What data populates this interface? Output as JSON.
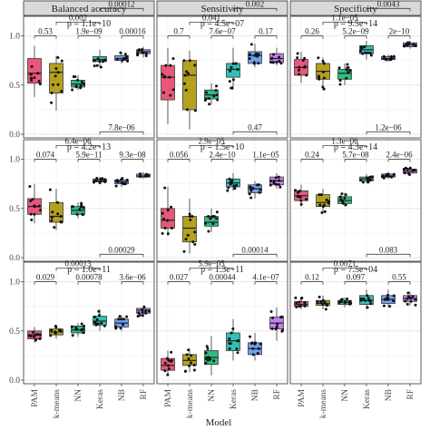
{
  "chart_data": {
    "type": "boxplot",
    "x_title": "Model",
    "categories": [
      "PAM",
      "k-means",
      "NN",
      "Keras",
      "NB",
      "RF"
    ],
    "colors": [
      "#e8577a",
      "#b5a11d",
      "#2dbd7e",
      "#30c2b5",
      "#6d9ff0",
      "#c57ef0"
    ],
    "column_titles": [
      "Balanced accuracy",
      "Sensitivity",
      "Specificity"
    ],
    "ylim": [
      0,
      1.15
    ],
    "y_ticks": [
      0.0,
      0.5,
      1.0
    ],
    "y_tick_labels": [
      "0.0",
      "0.5",
      "1.0"
    ],
    "grid": true,
    "panels": [
      {
        "row": 0,
        "col": 0,
        "p_overall": "p = 1.1e−10",
        "comparisons": [
          {
            "from": 0,
            "to": 1,
            "label": "0.53",
            "level": 0
          },
          {
            "from": 1,
            "to": 3,
            "label": "0.002",
            "level": 1
          },
          {
            "from": 2,
            "to": 3,
            "label": "1.9e−09",
            "level": 0
          },
          {
            "from": 3,
            "to": 5,
            "label": "0.00012",
            "level": 2
          },
          {
            "from": 4,
            "to": 5,
            "label": "0.00016",
            "level": 0
          }
        ],
        "boxes": [
          {
            "min": 0.38,
            "q1": 0.52,
            "median": 0.62,
            "q3": 0.77,
            "max": 0.9
          },
          {
            "min": 0.24,
            "q1": 0.42,
            "median": 0.63,
            "q3": 0.72,
            "max": 0.8
          },
          {
            "min": 0.45,
            "q1": 0.48,
            "median": 0.51,
            "q3": 0.55,
            "max": 0.6
          },
          {
            "min": 0.68,
            "q1": 0.74,
            "median": 0.76,
            "q3": 0.79,
            "max": 0.86
          },
          {
            "min": 0.72,
            "q1": 0.75,
            "median": 0.77,
            "q3": 0.8,
            "max": 0.84
          },
          {
            "min": 0.78,
            "q1": 0.82,
            "median": 0.84,
            "q3": 0.86,
            "max": 0.89
          }
        ]
      },
      {
        "row": 0,
        "col": 1,
        "p_overall": "p = 4.5e−07",
        "comparisons": [
          {
            "from": 0,
            "to": 1,
            "label": "0.7",
            "level": 0
          },
          {
            "from": 1,
            "to": 3,
            "label": "0.041",
            "level": 1
          },
          {
            "from": 2,
            "to": 3,
            "label": "7.6e−07",
            "level": 0
          },
          {
            "from": 3,
            "to": 5,
            "label": "0.002",
            "level": 2
          },
          {
            "from": 4,
            "to": 5,
            "label": "0.17",
            "level": 0
          }
        ],
        "boxes": [
          {
            "min": 0.1,
            "q1": 0.35,
            "median": 0.58,
            "q3": 0.7,
            "max": 0.88
          },
          {
            "min": 0.05,
            "q1": 0.25,
            "median": 0.6,
            "q3": 0.75,
            "max": 0.85
          },
          {
            "min": 0.3,
            "q1": 0.36,
            "median": 0.4,
            "q3": 0.45,
            "max": 0.52
          },
          {
            "min": 0.45,
            "q1": 0.58,
            "median": 0.66,
            "q3": 0.72,
            "max": 0.88
          },
          {
            "min": 0.68,
            "q1": 0.72,
            "median": 0.8,
            "q3": 0.84,
            "max": 0.92
          },
          {
            "min": 0.7,
            "q1": 0.73,
            "median": 0.77,
            "q3": 0.82,
            "max": 0.88
          }
        ]
      },
      {
        "row": 0,
        "col": 2,
        "p_overall": "p = 9.5e−14",
        "comparisons": [
          {
            "from": 0,
            "to": 1,
            "label": "0.26",
            "level": 0
          },
          {
            "from": 1,
            "to": 3,
            "label": "1.1e−05",
            "level": 1
          },
          {
            "from": 2,
            "to": 3,
            "label": "5.2e−09",
            "level": 0
          },
          {
            "from": 3,
            "to": 5,
            "label": "0.0043",
            "level": 2
          },
          {
            "from": 4,
            "to": 5,
            "label": "2e−10",
            "level": 0
          }
        ],
        "boxes": [
          {
            "min": 0.52,
            "q1": 0.6,
            "median": 0.68,
            "q3": 0.76,
            "max": 0.84
          },
          {
            "min": 0.45,
            "q1": 0.56,
            "median": 0.64,
            "q3": 0.72,
            "max": 0.78
          },
          {
            "min": 0.5,
            "q1": 0.56,
            "median": 0.62,
            "q3": 0.66,
            "max": 0.72
          },
          {
            "min": 0.76,
            "q1": 0.82,
            "median": 0.86,
            "q3": 0.9,
            "max": 0.95
          },
          {
            "min": 0.74,
            "q1": 0.76,
            "median": 0.77,
            "q3": 0.79,
            "max": 0.81
          },
          {
            "min": 0.87,
            "q1": 0.89,
            "median": 0.91,
            "q3": 0.93,
            "max": 0.95
          }
        ]
      },
      {
        "row": 1,
        "col": 0,
        "p_overall": "p = 4.2e−13",
        "comparisons": [
          {
            "from": 0,
            "to": 1,
            "label": "0.074",
            "level": 0
          },
          {
            "from": 1,
            "to": 3,
            "label": "6.4e−06",
            "level": 1
          },
          {
            "from": 2,
            "to": 3,
            "label": "5.9e−11",
            "level": 0
          },
          {
            "from": 3,
            "to": 5,
            "label": "7.8e−06",
            "level": 2
          },
          {
            "from": 4,
            "to": 5,
            "label": "9.3e−08",
            "level": 0
          }
        ],
        "boxes": [
          {
            "min": 0.35,
            "q1": 0.44,
            "median": 0.52,
            "q3": 0.6,
            "max": 0.75
          },
          {
            "min": 0.28,
            "q1": 0.36,
            "median": 0.42,
            "q3": 0.56,
            "max": 0.7
          },
          {
            "min": 0.4,
            "q1": 0.44,
            "median": 0.48,
            "q3": 0.52,
            "max": 0.56
          },
          {
            "min": 0.76,
            "q1": 0.77,
            "median": 0.78,
            "q3": 0.8,
            "max": 0.82
          },
          {
            "min": 0.72,
            "q1": 0.75,
            "median": 0.77,
            "q3": 0.79,
            "max": 0.82
          },
          {
            "min": 0.8,
            "q1": 0.82,
            "median": 0.83,
            "q3": 0.85,
            "max": 0.87
          }
        ]
      },
      {
        "row": 1,
        "col": 1,
        "p_overall": "p = 1.5e−10",
        "comparisons": [
          {
            "from": 0,
            "to": 1,
            "label": "0.056",
            "level": 0
          },
          {
            "from": 1,
            "to": 3,
            "label": "2.9e−05",
            "level": 1
          },
          {
            "from": 2,
            "to": 3,
            "label": "2.4e−10",
            "level": 0
          },
          {
            "from": 3,
            "to": 5,
            "label": "0.47",
            "level": 2
          },
          {
            "from": 4,
            "to": 5,
            "label": "1.1e−05",
            "level": 0
          }
        ],
        "boxes": [
          {
            "min": 0.22,
            "q1": 0.3,
            "median": 0.38,
            "q3": 0.5,
            "max": 0.72
          },
          {
            "min": 0.04,
            "q1": 0.16,
            "median": 0.3,
            "q3": 0.42,
            "max": 0.6
          },
          {
            "min": 0.26,
            "q1": 0.32,
            "median": 0.36,
            "q3": 0.42,
            "max": 0.5
          },
          {
            "min": 0.68,
            "q1": 0.72,
            "median": 0.76,
            "q3": 0.8,
            "max": 0.86
          },
          {
            "min": 0.6,
            "q1": 0.66,
            "median": 0.7,
            "q3": 0.74,
            "max": 0.78
          },
          {
            "min": 0.7,
            "q1": 0.74,
            "median": 0.78,
            "q3": 0.82,
            "max": 0.86
          }
        ]
      },
      {
        "row": 1,
        "col": 2,
        "p_overall": "p = 4.3e−14",
        "comparisons": [
          {
            "from": 0,
            "to": 1,
            "label": "0.24",
            "level": 0
          },
          {
            "from": 1,
            "to": 3,
            "label": "1.3e−06",
            "level": 1
          },
          {
            "from": 2,
            "to": 3,
            "label": "5.7e−08",
            "level": 0
          },
          {
            "from": 3,
            "to": 5,
            "label": "1.2e−06",
            "level": 2
          },
          {
            "from": 4,
            "to": 5,
            "label": "2.4e−06",
            "level": 0
          }
        ],
        "boxes": [
          {
            "min": 0.52,
            "q1": 0.58,
            "median": 0.63,
            "q3": 0.68,
            "max": 0.74
          },
          {
            "min": 0.45,
            "q1": 0.52,
            "median": 0.56,
            "q3": 0.64,
            "max": 0.7
          },
          {
            "min": 0.52,
            "q1": 0.55,
            "median": 0.58,
            "q3": 0.62,
            "max": 0.66
          },
          {
            "min": 0.76,
            "q1": 0.78,
            "median": 0.8,
            "q3": 0.82,
            "max": 0.85
          },
          {
            "min": 0.8,
            "q1": 0.82,
            "median": 0.83,
            "q3": 0.85,
            "max": 0.87
          },
          {
            "min": 0.84,
            "q1": 0.86,
            "median": 0.88,
            "q3": 0.9,
            "max": 0.92
          }
        ]
      },
      {
        "row": 2,
        "col": 0,
        "p_overall": "p = 1.0e−11",
        "comparisons": [
          {
            "from": 0,
            "to": 1,
            "label": "0.029",
            "level": 0
          },
          {
            "from": 1,
            "to": 3,
            "label": "0.00013",
            "level": 1
          },
          {
            "from": 2,
            "to": 3,
            "label": "0.00078",
            "level": 0
          },
          {
            "from": 3,
            "to": 5,
            "label": "0.00029",
            "level": 2
          },
          {
            "from": 4,
            "to": 5,
            "label": "3.6e−06",
            "level": 0
          }
        ],
        "boxes": [
          {
            "min": 0.38,
            "q1": 0.42,
            "median": 0.46,
            "q3": 0.5,
            "max": 0.54
          },
          {
            "min": 0.42,
            "q1": 0.46,
            "median": 0.49,
            "q3": 0.52,
            "max": 0.56
          },
          {
            "min": 0.44,
            "q1": 0.48,
            "median": 0.51,
            "q3": 0.55,
            "max": 0.58
          },
          {
            "min": 0.5,
            "q1": 0.56,
            "median": 0.6,
            "q3": 0.65,
            "max": 0.72
          },
          {
            "min": 0.5,
            "q1": 0.54,
            "median": 0.58,
            "q3": 0.62,
            "max": 0.66
          },
          {
            "min": 0.64,
            "q1": 0.68,
            "median": 0.71,
            "q3": 0.73,
            "max": 0.76
          }
        ]
      },
      {
        "row": 2,
        "col": 1,
        "p_overall": "p = 1.3e−11",
        "comparisons": [
          {
            "from": 0,
            "to": 1,
            "label": "0.027",
            "level": 0
          },
          {
            "from": 1,
            "to": 3,
            "label": "5.9e−05",
            "level": 1
          },
          {
            "from": 2,
            "to": 3,
            "label": "0.00044",
            "level": 0
          },
          {
            "from": 3,
            "to": 5,
            "label": "0.00014",
            "level": 2
          },
          {
            "from": 4,
            "to": 5,
            "label": "4.1e−07",
            "level": 0
          }
        ],
        "boxes": [
          {
            "min": 0.04,
            "q1": 0.1,
            "median": 0.15,
            "q3": 0.22,
            "max": 0.3
          },
          {
            "min": 0.08,
            "q1": 0.15,
            "median": 0.2,
            "q3": 0.26,
            "max": 0.32
          },
          {
            "min": 0.05,
            "q1": 0.16,
            "median": 0.23,
            "q3": 0.3,
            "max": 0.45
          },
          {
            "min": 0.2,
            "q1": 0.3,
            "median": 0.4,
            "q3": 0.48,
            "max": 0.62
          },
          {
            "min": 0.2,
            "q1": 0.26,
            "median": 0.32,
            "q3": 0.38,
            "max": 0.48
          },
          {
            "min": 0.4,
            "q1": 0.52,
            "median": 0.58,
            "q3": 0.64,
            "max": 0.74
          }
        ]
      },
      {
        "row": 2,
        "col": 2,
        "p_overall": "p = 7.5e−04",
        "comparisons": [
          {
            "from": 0,
            "to": 1,
            "label": "0.12",
            "level": 0
          },
          {
            "from": 1,
            "to": 3,
            "label": "0.0071",
            "level": 1
          },
          {
            "from": 2,
            "to": 3,
            "label": "0.097",
            "level": 0
          },
          {
            "from": 3,
            "to": 5,
            "label": "0.083",
            "level": 2
          },
          {
            "from": 4,
            "to": 5,
            "label": "0.55",
            "level": 0
          }
        ],
        "boxes": [
          {
            "min": 0.72,
            "q1": 0.75,
            "median": 0.77,
            "q3": 0.8,
            "max": 0.84
          },
          {
            "min": 0.72,
            "q1": 0.76,
            "median": 0.78,
            "q3": 0.81,
            "max": 0.86
          },
          {
            "min": 0.74,
            "q1": 0.77,
            "median": 0.79,
            "q3": 0.81,
            "max": 0.84
          },
          {
            "min": 0.72,
            "q1": 0.77,
            "median": 0.81,
            "q3": 0.86,
            "max": 0.92
          },
          {
            "min": 0.74,
            "q1": 0.78,
            "median": 0.82,
            "q3": 0.86,
            "max": 0.92
          },
          {
            "min": 0.76,
            "q1": 0.8,
            "median": 0.83,
            "q3": 0.86,
            "max": 0.9
          }
        ]
      }
    ]
  }
}
